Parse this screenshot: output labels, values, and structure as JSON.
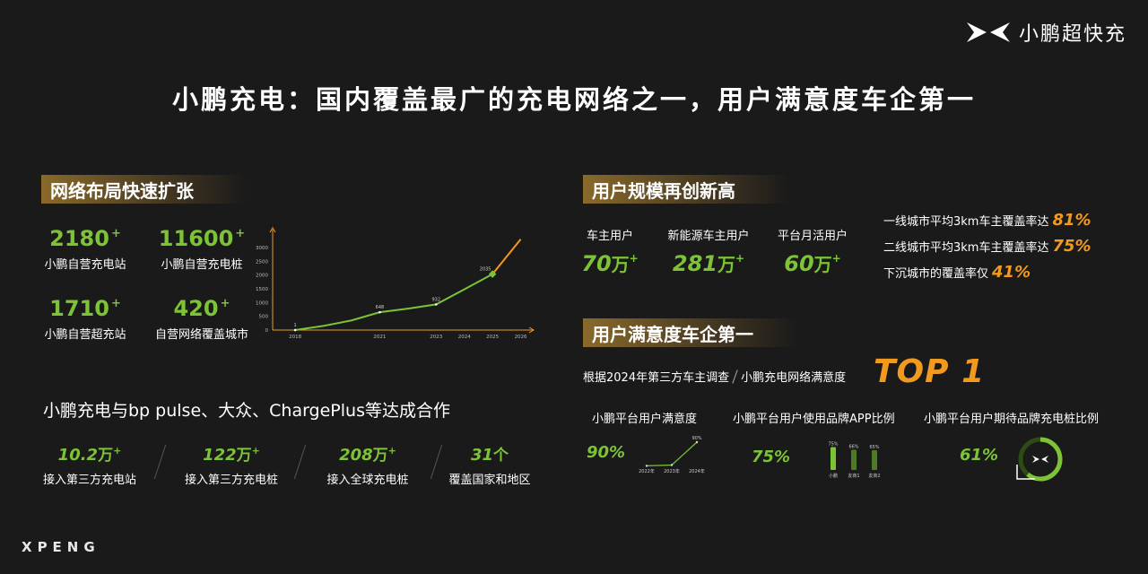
{
  "brand": {
    "name": "小鹏超快充",
    "footer": "XPENG"
  },
  "title": "小鹏充电：国内覆盖最广的充电网络之一，用户满意度车企第一",
  "network": {
    "tag": "网络布局快速扩张",
    "stats": [
      {
        "value": "2180",
        "plus": "+",
        "label": "小鹏自营充电站"
      },
      {
        "value": "11600",
        "plus": "+",
        "label": "小鹏自营充电桩"
      },
      {
        "value": "1710",
        "plus": "+",
        "label": "小鹏自营超充站"
      },
      {
        "value": "420",
        "plus": "+",
        "label": "自营网络覆盖城市"
      }
    ]
  },
  "chart_data": {
    "type": "line",
    "x_ticks": [
      "2018",
      "2021",
      "2023",
      "2024",
      "2025",
      "2026"
    ],
    "y_ticks": [
      "3000",
      "2500",
      "2000",
      "1500",
      "1000",
      "500",
      "0"
    ],
    "ylim": [
      0,
      3000
    ],
    "series": [
      {
        "points": [
          [
            2018,
            1
          ],
          [
            2019,
            150
          ],
          [
            2020,
            350
          ],
          [
            2021,
            648
          ],
          [
            2022,
            780
          ],
          [
            2023,
            932
          ],
          [
            2024,
            1480
          ],
          [
            2025,
            2035
          ]
        ],
        "labels": [
          "1",
          "648",
          "932",
          "2035"
        ]
      },
      {
        "points": [
          [
            2025,
            2035
          ],
          [
            2026,
            3300
          ]
        ]
      }
    ]
  },
  "partners": {
    "title": "小鹏充电与bp pulse、大众、ChargePlus等达成合作",
    "stats": [
      {
        "value": "10.2",
        "unit": "万",
        "plus": "+",
        "label": "接入第三方充电站"
      },
      {
        "value": "122",
        "unit": "万",
        "plus": "+",
        "label": "接入第三方充电桩"
      },
      {
        "value": "208",
        "unit": "万",
        "plus": "+",
        "label": "接入全球充电桩"
      },
      {
        "value": "31",
        "unit": "个",
        "plus": "",
        "label": "覆盖国家和地区"
      }
    ]
  },
  "users": {
    "tag": "用户规模再创新高",
    "stats": [
      {
        "label": "车主用户",
        "value": "70",
        "unit": "万",
        "plus": "+"
      },
      {
        "label": "新能源车主用户",
        "value": "281",
        "unit": "万",
        "plus": "+"
      },
      {
        "label": "平台月活用户",
        "value": "60",
        "unit": "万",
        "plus": "+"
      }
    ],
    "coverage": [
      {
        "text": "一线城市平均3km车主覆盖率达",
        "pct": "81%"
      },
      {
        "text": "二线城市平均3km车主覆盖率达",
        "pct": "75%"
      },
      {
        "text": "下沉城市的覆盖率仅",
        "pct": "41%"
      }
    ]
  },
  "satisfaction": {
    "tag": "用户满意度车企第一",
    "survey_a": "根据2024年第三方车主调查",
    "survey_b": "小鹏充电网络满意度",
    "rank": "TOP 1",
    "items": [
      {
        "label": "小鹏平台用户满意度",
        "pct": "90%"
      },
      {
        "label": "小鹏平台用户使用品牌APP比例",
        "pct": "75%"
      },
      {
        "label": "小鹏平台用户期待品牌充电桩比例",
        "pct": "61%"
      }
    ],
    "mini_line": {
      "x": [
        "2022年",
        "2023年",
        "2024年"
      ],
      "values": [
        2,
        5,
        90
      ],
      "end_label": "90%"
    },
    "mini_bars": {
      "categories": [
        "小鹏",
        "友商1",
        "友商2"
      ],
      "values": [
        75,
        66,
        65
      ],
      "labels": [
        "75%",
        "66%",
        "65%"
      ]
    },
    "ring": {
      "value": 61
    }
  },
  "colors": {
    "green": "#7cc436",
    "orange": "#f29a1d",
    "bg": "#1a1a1a"
  }
}
